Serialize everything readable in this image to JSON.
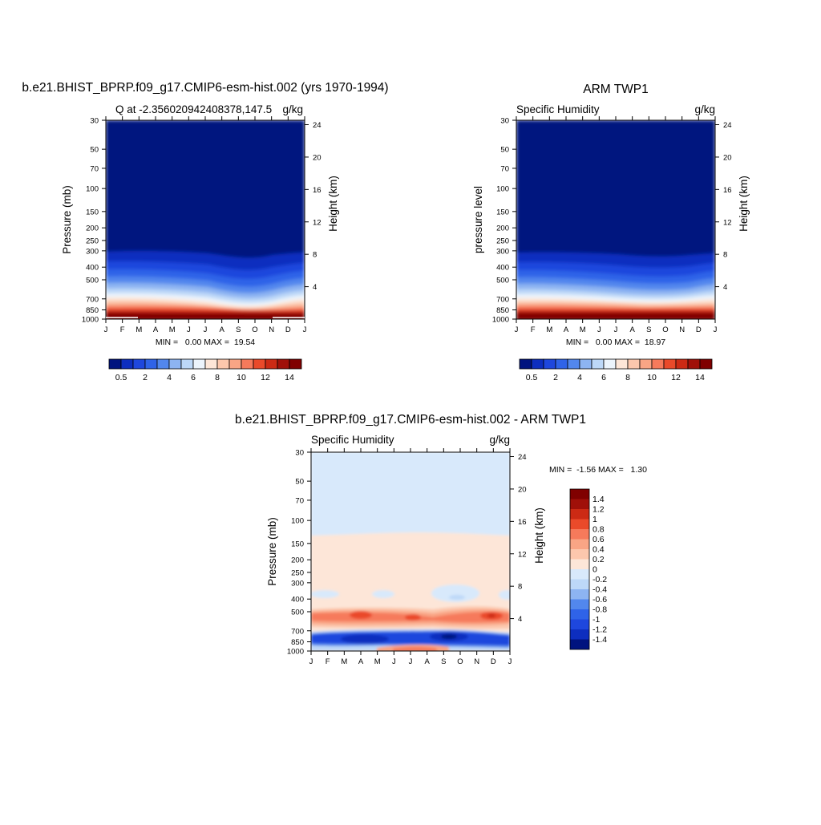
{
  "palette": {
    "moisture": [
      "#00137f",
      "#0d2ebf",
      "#1e47dd",
      "#2f63e8",
      "#5287ed",
      "#8db4f2",
      "#bdd8f8",
      "#ecf4fc",
      "#fde6d8",
      "#fcc7ad",
      "#f9a585",
      "#f67a5b",
      "#ea4a2a",
      "#cc2a14",
      "#a01009",
      "#800000"
    ],
    "diff": [
      "#00137f",
      "#0d2ebf",
      "#1e47dd",
      "#2f63e8",
      "#5287ed",
      "#8db4f2",
      "#bdd8f8",
      "#d8e9fb",
      "#fde6d8",
      "#fcc7ad",
      "#f9a585",
      "#f67a5b",
      "#ea4a2a",
      "#cc2a14",
      "#a01009",
      "#800000"
    ]
  },
  "chart_data": [
    {
      "type": "heatmap",
      "title": "b.e21.BHIST_BPRP.f09_g17.CMIP6-esm-hist.002 (yrs 1970-1994)",
      "subtitle_left": "Q at -2.356020942408378,147.5",
      "subtitle_right": "g/kg",
      "ylabel": "Pressure (mb)",
      "ylabel_right": "Height (km)",
      "x_ticks": [
        "J",
        "F",
        "M",
        "A",
        "M",
        "J",
        "J",
        "A",
        "S",
        "O",
        "N",
        "D",
        "J"
      ],
      "y_ticks": [
        "30",
        "50",
        "70",
        "100",
        "150",
        "200",
        "250",
        "300",
        "400",
        "500",
        "700",
        "850",
        "1000"
      ],
      "y_right_ticks": [
        "24",
        "20",
        "16",
        "12",
        "8",
        "4"
      ],
      "stats_label": "MIN =   0.00 MAX =  19.54",
      "min": 0.0,
      "max": 19.54,
      "colorbar_labels": [
        "0.5",
        "2",
        "4",
        "6",
        "8",
        "10",
        "12",
        "14"
      ],
      "colorbar_levels": [
        0.5,
        1,
        2,
        3,
        4,
        5,
        6,
        7,
        8,
        9,
        10,
        11,
        12,
        13,
        14
      ]
    },
    {
      "type": "heatmap",
      "title": "ARM TWP1",
      "subtitle_left": "Specific Humidity",
      "subtitle_right": "g/kg",
      "ylabel": "pressure level",
      "ylabel_right": "Height (km)",
      "x_ticks": [
        "J",
        "F",
        "M",
        "A",
        "M",
        "J",
        "J",
        "A",
        "S",
        "O",
        "N",
        "D",
        "J"
      ],
      "y_ticks": [
        "30",
        "50",
        "70",
        "100",
        "150",
        "200",
        "250",
        "300",
        "400",
        "500",
        "700",
        "850",
        "1000"
      ],
      "y_right_ticks": [
        "24",
        "20",
        "16",
        "12",
        "8",
        "4"
      ],
      "stats_label": "MIN =   0.00 MAX =  18.97",
      "min": 0.0,
      "max": 18.97,
      "colorbar_labels": [
        "0.5",
        "2",
        "4",
        "6",
        "8",
        "10",
        "12",
        "14"
      ],
      "colorbar_levels": [
        0.5,
        1,
        2,
        3,
        4,
        5,
        6,
        7,
        8,
        9,
        10,
        11,
        12,
        13,
        14
      ]
    },
    {
      "type": "heatmap",
      "title": "b.e21.BHIST_BPRP.f09_g17.CMIP6-esm-hist.002 - ARM TWP1",
      "subtitle_left": "Specific Humidity",
      "subtitle_right": "g/kg",
      "ylabel": "Pressure (mb)",
      "ylabel_right": "Height (km)",
      "x_ticks": [
        "J",
        "F",
        "M",
        "A",
        "M",
        "J",
        "J",
        "A",
        "S",
        "O",
        "N",
        "D",
        "J"
      ],
      "y_ticks": [
        "30",
        "50",
        "70",
        "100",
        "150",
        "200",
        "250",
        "300",
        "400",
        "500",
        "700",
        "850",
        "1000"
      ],
      "y_right_ticks": [
        "24",
        "20",
        "16",
        "12",
        "8",
        "4"
      ],
      "stats_label": "MIN =  -1.56 MAX =   1.30",
      "min": -1.56,
      "max": 1.3,
      "colorbar_labels": [
        "1.4",
        "1.2",
        "1",
        "0.8",
        "0.6",
        "0.4",
        "0.2",
        "0",
        "-0.2",
        "-0.4",
        "-0.6",
        "-0.8",
        "-1",
        "-1.2",
        "-1.4"
      ],
      "colorbar_levels": [
        -1.4,
        -1.2,
        -1.0,
        -0.8,
        -0.6,
        -0.4,
        -0.2,
        0,
        0.2,
        0.4,
        0.6,
        0.8,
        1.0,
        1.2,
        1.4
      ]
    }
  ]
}
